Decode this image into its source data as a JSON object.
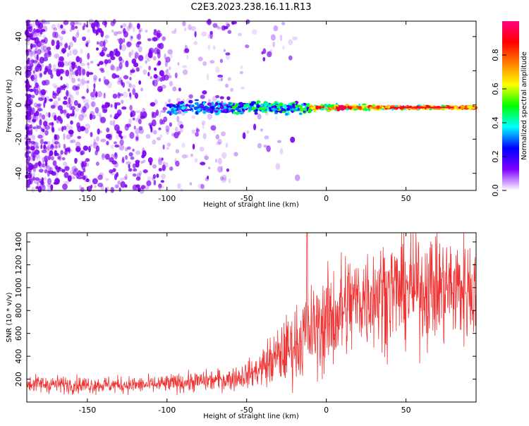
{
  "title": "C2E3.2023.238.16.11.R13",
  "chart_data": [
    {
      "type": "heatmap",
      "xlabel": "Height of straight line (km)",
      "ylabel": "Frequency (Hz)",
      "xlim": [
        -188,
        94
      ],
      "ylim": [
        -50,
        49
      ],
      "xticks": [
        -150,
        -100,
        -50,
        0,
        50
      ],
      "xtick_labels": [
        "-150",
        "-100",
        "-50",
        "0",
        "50"
      ],
      "yticks": [
        -40,
        -20,
        0,
        20,
        40
      ],
      "ytick_labels": [
        "-40",
        "-20",
        "0",
        "20",
        "40"
      ],
      "ridge": {
        "frequency_hz": -1.5,
        "from_km": -100,
        "to_km": 94,
        "peak_near_km": 10
      },
      "colorbar": {
        "label": "Normalized spectral amplitude",
        "range": [
          0,
          1
        ],
        "ticks": [
          0.0,
          0.2,
          0.4,
          0.6,
          0.8
        ],
        "tick_labels": [
          "0.0",
          "0.2",
          "0.4",
          "0.6",
          "0.8"
        ],
        "colormap": [
          "#ffffff",
          "#7f00ff",
          "#0000ff",
          "#00ffff",
          "#00ff00",
          "#ffff00",
          "#ff8000",
          "#ff0000",
          "#ff0080"
        ]
      }
    },
    {
      "type": "line",
      "xlabel": "Height of straight line (km)",
      "ylabel": "SNR (10 * v/v)",
      "xlim": [
        -188,
        94
      ],
      "ylim": [
        0,
        1480
      ],
      "xticks": [
        -150,
        -100,
        -50,
        0,
        50
      ],
      "xtick_labels": [
        "-150",
        "-100",
        "-50",
        "0",
        "50"
      ],
      "yticks": [
        200,
        400,
        600,
        800,
        1000,
        1200,
        1400
      ],
      "ytick_labels": [
        "200",
        "400",
        "600",
        "800",
        "1000",
        "1200",
        "1400"
      ],
      "color": "#f03232",
      "trend": {
        "x": [
          -188,
          -150,
          -110,
          -80,
          -60,
          -45,
          -30,
          -15,
          0,
          10,
          20,
          30,
          50,
          70,
          94
        ],
        "y": [
          160,
          150,
          150,
          180,
          200,
          260,
          400,
          560,
          700,
          800,
          900,
          950,
          990,
          1000,
          990
        ]
      }
    }
  ]
}
